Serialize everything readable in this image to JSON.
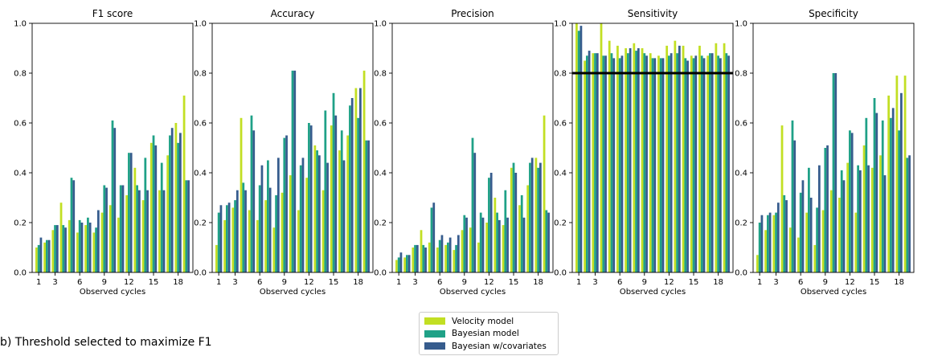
{
  "caption": "b) Threshold selected to maximize F1",
  "legend": [
    {
      "name": "Velocity model",
      "color": "#c2df23"
    },
    {
      "name": "Bayesian model",
      "color": "#1fa187"
    },
    {
      "name": "Bayesian w/covariates",
      "color": "#365c8d"
    }
  ],
  "chart_data": [
    {
      "type": "bar",
      "title": "F1 score",
      "xlabel": "Observed cycles",
      "ylabel": "",
      "ylim": [
        0,
        1.0
      ],
      "yticks": [
        "0.0",
        "0.2",
        "0.4",
        "0.6",
        "0.8",
        "1.0"
      ],
      "xticks": [
        "1",
        "3",
        "6",
        "9",
        "12",
        "15",
        "18"
      ],
      "categories": [
        1,
        2,
        3,
        4,
        5,
        6,
        7,
        8,
        9,
        10,
        11,
        12,
        13,
        14,
        15,
        16,
        17,
        18,
        19
      ],
      "series": [
        {
          "name": "Velocity model",
          "values": [
            0.1,
            0.12,
            0.17,
            0.28,
            0.21,
            0.16,
            0.19,
            0.16,
            0.24,
            0.27,
            0.22,
            0.31,
            0.42,
            0.29,
            0.52,
            0.33,
            0.47,
            0.6,
            0.71
          ]
        },
        {
          "name": "Bayesian model",
          "values": [
            0.11,
            0.13,
            0.19,
            0.19,
            0.38,
            0.21,
            0.22,
            0.18,
            0.35,
            0.61,
            0.35,
            0.48,
            0.35,
            0.46,
            0.55,
            0.44,
            0.55,
            0.52,
            0.37
          ]
        },
        {
          "name": "Bayesian w/covariates",
          "values": [
            0.14,
            0.13,
            0.19,
            0.18,
            0.37,
            0.2,
            0.2,
            0.25,
            0.34,
            0.58,
            0.35,
            0.48,
            0.33,
            0.33,
            0.51,
            0.33,
            0.58,
            0.56,
            0.37
          ]
        }
      ]
    },
    {
      "type": "bar",
      "title": "Accuracy",
      "xlabel": "Observed cycles",
      "ylabel": "",
      "ylim": [
        0,
        1.0
      ],
      "yticks": [
        "0.0",
        "0.2",
        "0.4",
        "0.6",
        "0.8",
        "1.0"
      ],
      "xticks": [
        "1",
        "3",
        "6",
        "9",
        "12",
        "15",
        "18"
      ],
      "categories": [
        1,
        2,
        3,
        4,
        5,
        6,
        7,
        8,
        9,
        10,
        11,
        12,
        13,
        14,
        15,
        16,
        17,
        18,
        19
      ],
      "series": [
        {
          "name": "Velocity model",
          "values": [
            0.11,
            0.21,
            0.26,
            0.62,
            0.25,
            0.21,
            0.29,
            0.18,
            0.32,
            0.39,
            0.25,
            0.38,
            0.51,
            0.33,
            0.59,
            0.49,
            0.55,
            0.74,
            0.81
          ]
        },
        {
          "name": "Bayesian model",
          "values": [
            0.24,
            0.27,
            0.29,
            0.36,
            0.63,
            0.35,
            0.45,
            0.31,
            0.54,
            0.81,
            0.43,
            0.6,
            0.49,
            0.65,
            0.72,
            0.57,
            0.67,
            0.62,
            0.53
          ]
        },
        {
          "name": "Bayesian w/covariates",
          "values": [
            0.27,
            0.28,
            0.33,
            0.33,
            0.57,
            0.43,
            0.34,
            0.46,
            0.55,
            0.81,
            0.46,
            0.59,
            0.47,
            0.44,
            0.63,
            0.45,
            0.7,
            0.74,
            0.53
          ]
        }
      ]
    },
    {
      "type": "bar",
      "title": "Precision",
      "xlabel": "Observed cycles",
      "ylabel": "",
      "ylim": [
        0,
        1.0
      ],
      "yticks": [
        "0.0",
        "0.2",
        "0.4",
        "0.6",
        "0.8",
        "1.0"
      ],
      "xticks": [
        "1",
        "3",
        "6",
        "9",
        "12",
        "15",
        "18"
      ],
      "categories": [
        1,
        2,
        3,
        4,
        5,
        6,
        7,
        8,
        9,
        10,
        11,
        12,
        13,
        14,
        15,
        16,
        17,
        18,
        19
      ],
      "series": [
        {
          "name": "Velocity model",
          "values": [
            0.05,
            0.06,
            0.1,
            0.17,
            0.12,
            0.1,
            0.11,
            0.09,
            0.17,
            0.18,
            0.12,
            0.2,
            0.3,
            0.19,
            0.42,
            0.27,
            0.35,
            0.46,
            0.63
          ]
        },
        {
          "name": "Bayesian model",
          "values": [
            0.06,
            0.07,
            0.11,
            0.11,
            0.26,
            0.13,
            0.12,
            0.11,
            0.23,
            0.54,
            0.24,
            0.38,
            0.24,
            0.33,
            0.44,
            0.31,
            0.44,
            0.42,
            0.25
          ]
        },
        {
          "name": "Bayesian w/covariates",
          "values": [
            0.08,
            0.07,
            0.11,
            0.1,
            0.28,
            0.15,
            0.14,
            0.15,
            0.22,
            0.48,
            0.22,
            0.4,
            0.21,
            0.22,
            0.4,
            0.22,
            0.46,
            0.44,
            0.24
          ]
        }
      ]
    },
    {
      "type": "bar",
      "title": "Sensitivity",
      "xlabel": "Observed cycles",
      "ylabel": "",
      "ylim": [
        0,
        1.0
      ],
      "yticks": [
        "0.0",
        "0.2",
        "0.4",
        "0.6",
        "0.8",
        "1.0"
      ],
      "xticks": [
        "1",
        "3",
        "6",
        "9",
        "12",
        "15",
        "18"
      ],
      "categories": [
        1,
        2,
        3,
        4,
        5,
        6,
        7,
        8,
        9,
        10,
        11,
        12,
        13,
        14,
        15,
        16,
        17,
        18,
        19
      ],
      "hline": 0.8,
      "series": [
        {
          "name": "Velocity model",
          "values": [
            1.0,
            0.85,
            0.88,
            1.0,
            0.93,
            0.91,
            0.9,
            0.92,
            0.9,
            0.88,
            0.87,
            0.91,
            0.93,
            0.91,
            0.87,
            0.91,
            0.87,
            0.92,
            0.92
          ]
        },
        {
          "name": "Bayesian model",
          "values": [
            0.97,
            0.87,
            0.88,
            0.87,
            0.88,
            0.86,
            0.88,
            0.89,
            0.88,
            0.86,
            0.86,
            0.87,
            0.88,
            0.86,
            0.86,
            0.87,
            0.88,
            0.87,
            0.88
          ]
        },
        {
          "name": "Bayesian w/covariates",
          "values": [
            0.99,
            0.89,
            0.88,
            0.87,
            0.86,
            0.87,
            0.9,
            0.9,
            0.87,
            0.86,
            0.86,
            0.88,
            0.91,
            0.85,
            0.87,
            0.86,
            0.88,
            0.86,
            0.87
          ]
        }
      ]
    },
    {
      "type": "bar",
      "title": "Specificity",
      "xlabel": "Observed cycles",
      "ylabel": "",
      "ylim": [
        0,
        1.0
      ],
      "yticks": [
        "0.0",
        "0.2",
        "0.4",
        "0.6",
        "0.8",
        "1.0"
      ],
      "xticks": [
        "1",
        "3",
        "6",
        "9",
        "12",
        "15",
        "18"
      ],
      "categories": [
        1,
        2,
        3,
        4,
        5,
        6,
        7,
        8,
        9,
        10,
        11,
        12,
        13,
        14,
        15,
        16,
        17,
        18,
        19
      ],
      "series": [
        {
          "name": "Velocity model",
          "values": [
            0.07,
            0.17,
            0.23,
            0.59,
            0.18,
            0.14,
            0.24,
            0.11,
            0.25,
            0.33,
            0.3,
            0.44,
            0.24,
            0.51,
            0.42,
            0.47,
            0.71,
            0.79,
            0.79
          ]
        },
        {
          "name": "Bayesian model",
          "values": [
            0.2,
            0.23,
            0.24,
            0.31,
            0.61,
            0.32,
            0.42,
            0.26,
            0.5,
            0.8,
            0.41,
            0.57,
            0.43,
            0.62,
            0.7,
            0.61,
            0.62,
            0.57,
            0.46
          ]
        },
        {
          "name": "Bayesian w/covariates",
          "values": [
            0.23,
            0.24,
            0.28,
            0.29,
            0.53,
            0.37,
            0.3,
            0.43,
            0.51,
            0.8,
            0.37,
            0.56,
            0.41,
            0.43,
            0.64,
            0.39,
            0.66,
            0.72,
            0.47
          ]
        }
      ]
    }
  ]
}
